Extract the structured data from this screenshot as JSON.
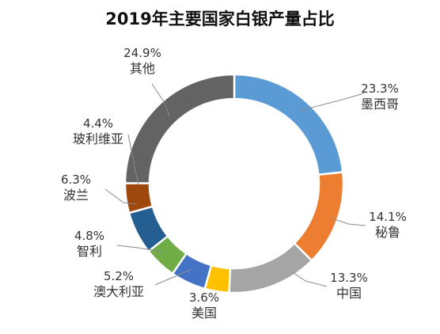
{
  "chart_data": {
    "type": "pie",
    "title": "2019年主要国家白银产量占比",
    "donut": true,
    "legend": "none",
    "slices": [
      {
        "name": "墨西哥",
        "value": 23.3,
        "label": "23.3%",
        "color": "#5B9BD5"
      },
      {
        "name": "秘鲁",
        "value": 14.1,
        "label": "14.1%",
        "color": "#ED7D31"
      },
      {
        "name": "中国",
        "value": 13.3,
        "label": "13.3%",
        "color": "#A5A5A5"
      },
      {
        "name": "美国",
        "value": 3.6,
        "label": "3.6%",
        "color": "#FFC000"
      },
      {
        "name": "澳大利亚",
        "value": 5.2,
        "label": "5.2%",
        "color": "#4472C4"
      },
      {
        "name": "智利",
        "value": 4.8,
        "label": "4.8%",
        "color": "#70AD47"
      },
      {
        "name": "波兰",
        "value": 6.3,
        "label": "6.3%",
        "color": "#255E91"
      },
      {
        "name": "玻利维亚",
        "value": 4.4,
        "label": "4.4%",
        "color": "#9E480E"
      },
      {
        "name": "其他",
        "value": 24.9,
        "label": "24.9%",
        "color": "#636363"
      }
    ]
  }
}
